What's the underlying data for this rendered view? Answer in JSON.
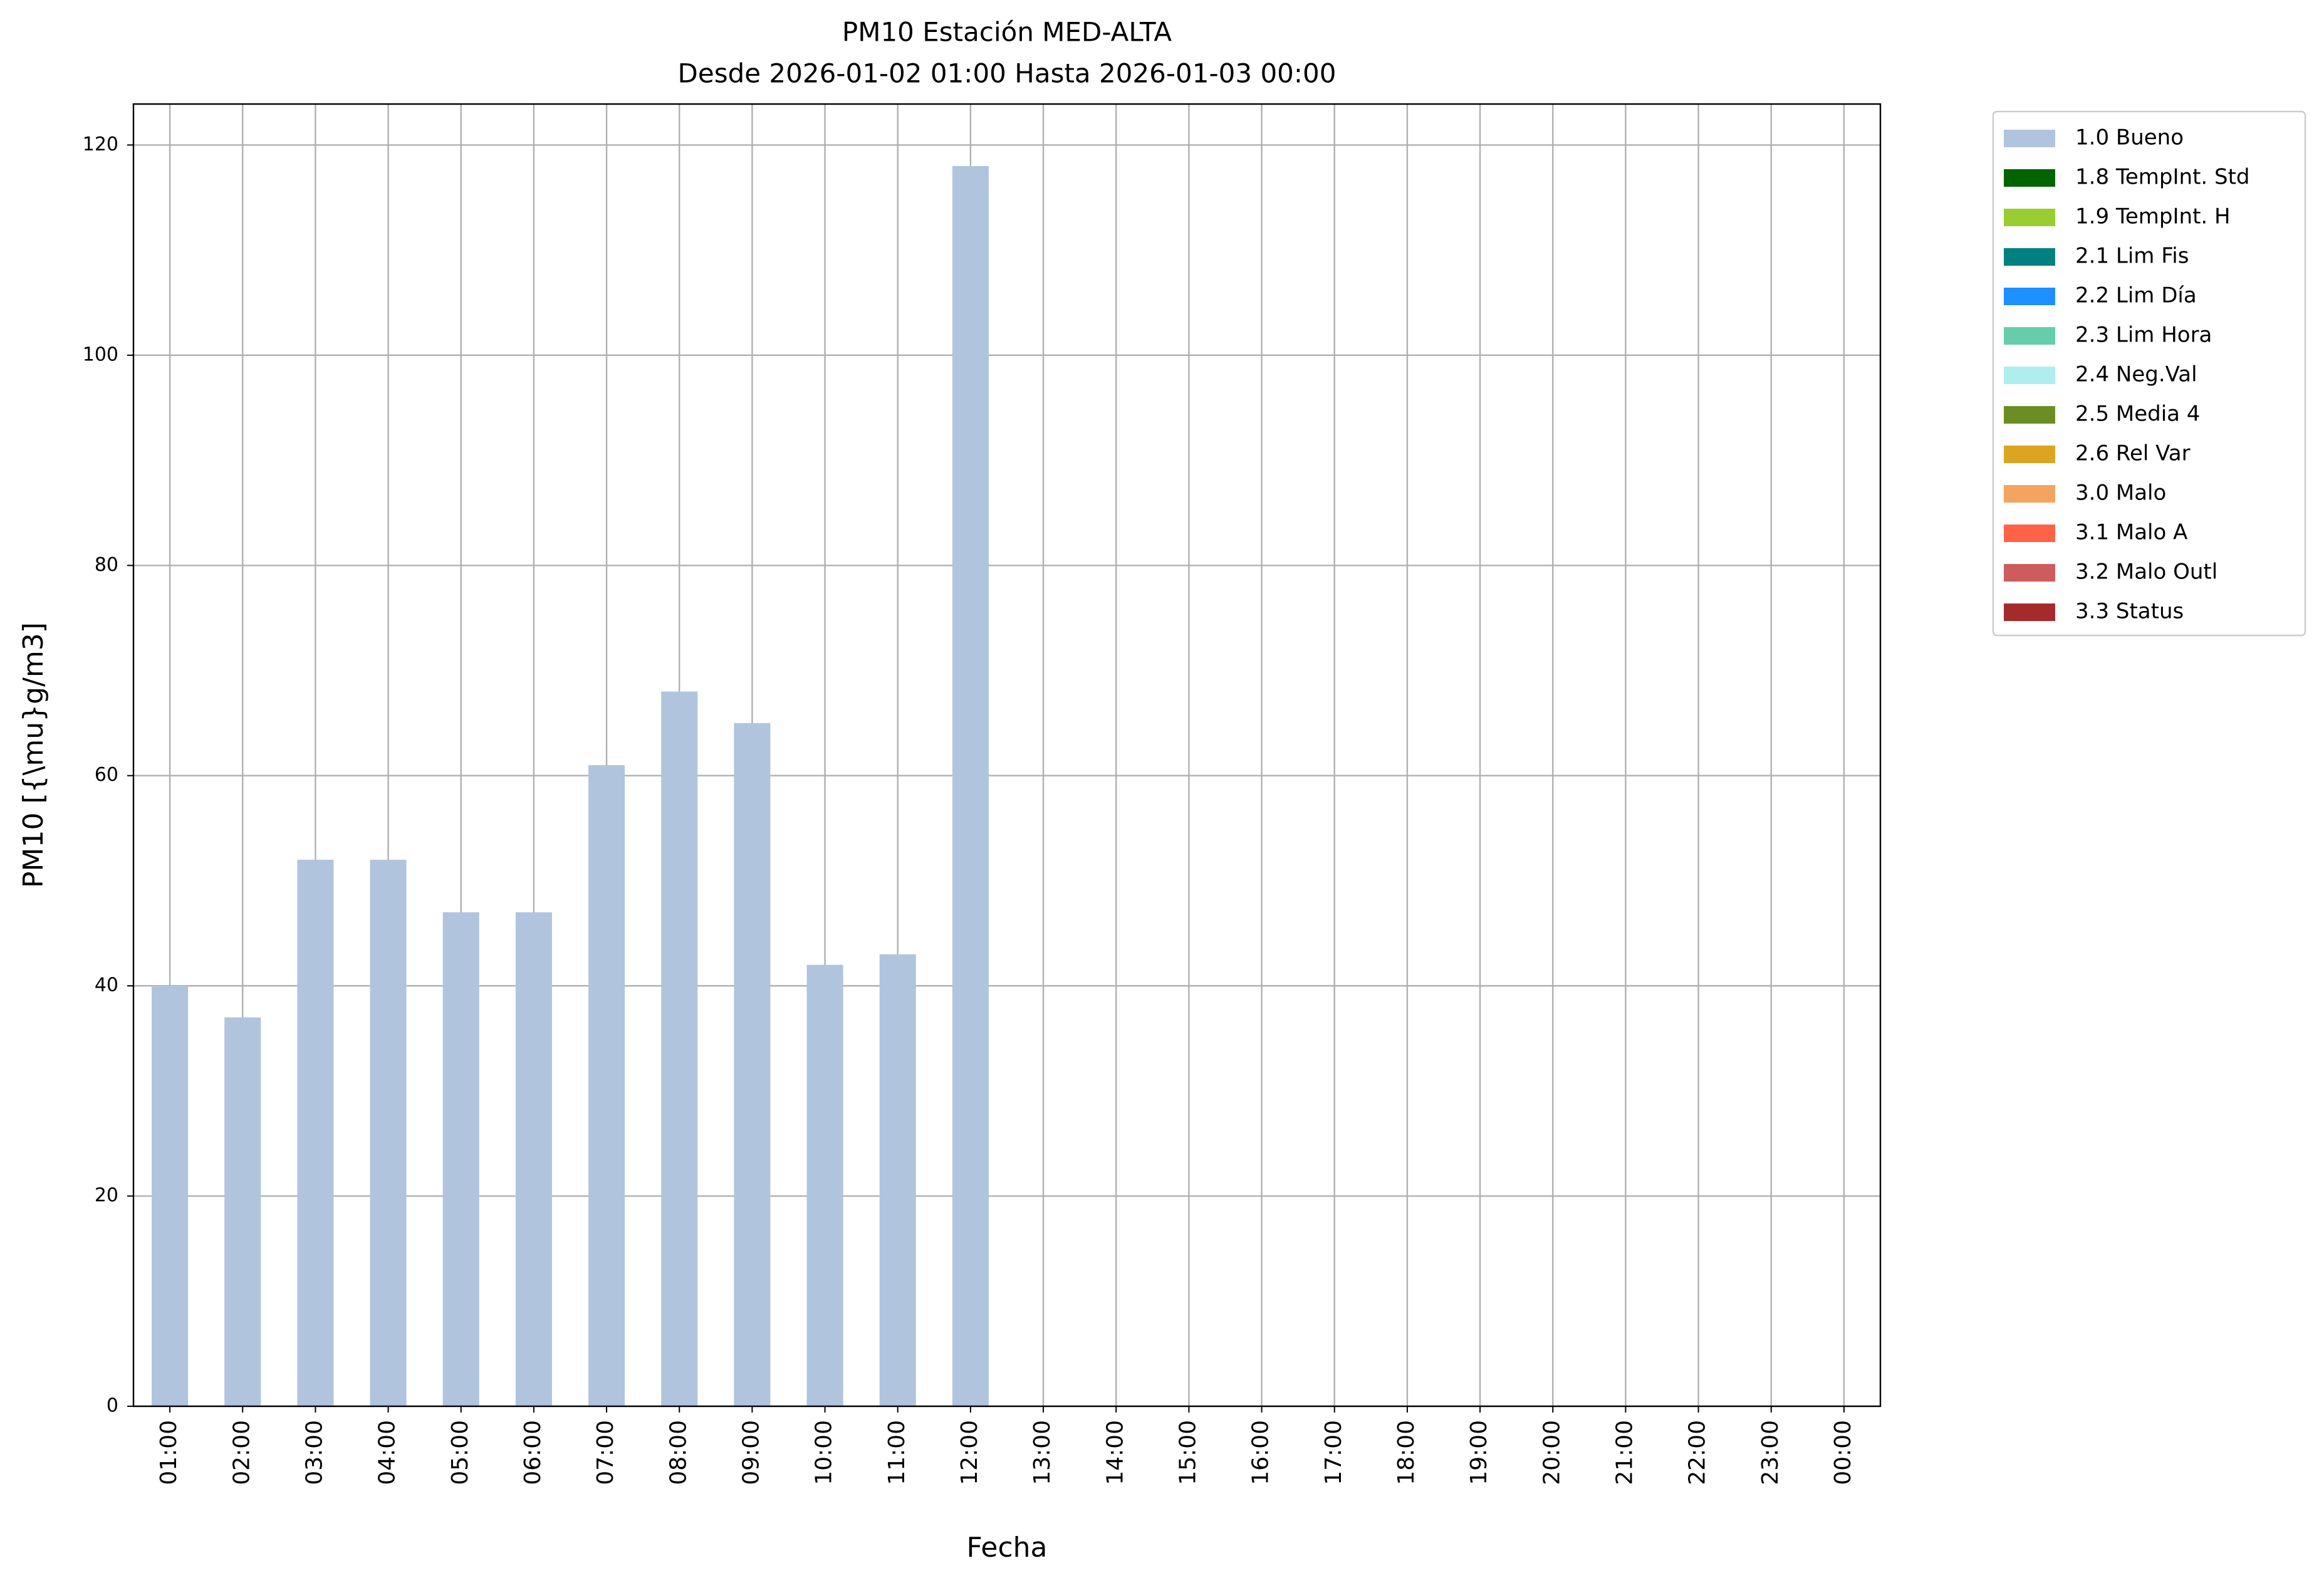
{
  "chart_data": {
    "type": "bar",
    "title": "PM10 Estación MED-ALTA",
    "subtitle": "Desde 2026-01-02 01:00 Hasta 2026-01-03 00:00",
    "x_label": "Fecha",
    "y_label": "PM10 [{\\mu}g/m3]",
    "categories": [
      "01:00",
      "02:00",
      "03:00",
      "04:00",
      "05:00",
      "06:00",
      "07:00",
      "08:00",
      "09:00",
      "10:00",
      "11:00",
      "12:00",
      "13:00",
      "14:00",
      "15:00",
      "16:00",
      "17:00",
      "18:00",
      "19:00",
      "20:00",
      "21:00",
      "22:00",
      "23:00",
      "00:00"
    ],
    "series": [
      {
        "name": "1.0 Bueno",
        "color": "#b0c4de",
        "values": [
          40,
          37,
          52,
          52,
          47,
          47,
          61,
          68,
          65,
          42,
          43,
          118,
          null,
          null,
          null,
          null,
          null,
          null,
          null,
          null,
          null,
          null,
          null,
          null
        ]
      },
      {
        "name": "1.8 TempInt. Std",
        "color": "#006400",
        "values": [
          null,
          null,
          null,
          null,
          null,
          null,
          null,
          null,
          null,
          null,
          null,
          null,
          null,
          null,
          null,
          null,
          null,
          null,
          null,
          null,
          null,
          null,
          null,
          null
        ]
      },
      {
        "name": "1.9 TempInt. H",
        "color": "#9acd32",
        "values": [
          null,
          null,
          null,
          null,
          null,
          null,
          null,
          null,
          null,
          null,
          null,
          null,
          null,
          null,
          null,
          null,
          null,
          null,
          null,
          null,
          null,
          null,
          null,
          null
        ]
      },
      {
        "name": "2.1 Lim Fis",
        "color": "#008080",
        "values": [
          null,
          null,
          null,
          null,
          null,
          null,
          null,
          null,
          null,
          null,
          null,
          null,
          null,
          null,
          null,
          null,
          null,
          null,
          null,
          null,
          null,
          null,
          null,
          null
        ]
      },
      {
        "name": "2.2 Lim Día",
        "color": "#1e90ff",
        "values": [
          null,
          null,
          null,
          null,
          null,
          null,
          null,
          null,
          null,
          null,
          null,
          null,
          null,
          null,
          null,
          null,
          null,
          null,
          null,
          null,
          null,
          null,
          null,
          null
        ]
      },
      {
        "name": "2.3 Lim Hora",
        "color": "#66cdaa",
        "values": [
          null,
          null,
          null,
          null,
          null,
          null,
          null,
          null,
          null,
          null,
          null,
          null,
          null,
          null,
          null,
          null,
          null,
          null,
          null,
          null,
          null,
          null,
          null,
          null
        ]
      },
      {
        "name": "2.4 Neg.Val",
        "color": "#afeeee",
        "values": [
          null,
          null,
          null,
          null,
          null,
          null,
          null,
          null,
          null,
          null,
          null,
          null,
          null,
          null,
          null,
          null,
          null,
          null,
          null,
          null,
          null,
          null,
          null,
          null
        ]
      },
      {
        "name": "2.5 Media 4",
        "color": "#6b8e23",
        "values": [
          null,
          null,
          null,
          null,
          null,
          null,
          null,
          null,
          null,
          null,
          null,
          null,
          null,
          null,
          null,
          null,
          null,
          null,
          null,
          null,
          null,
          null,
          null,
          null
        ]
      },
      {
        "name": "2.6 Rel Var",
        "color": "#daa520",
        "values": [
          null,
          null,
          null,
          null,
          null,
          null,
          null,
          null,
          null,
          null,
          null,
          null,
          null,
          null,
          null,
          null,
          null,
          null,
          null,
          null,
          null,
          null,
          null,
          null
        ]
      },
      {
        "name": "3.0 Malo",
        "color": "#f4a460",
        "values": [
          null,
          null,
          null,
          null,
          null,
          null,
          null,
          null,
          null,
          null,
          null,
          null,
          null,
          null,
          null,
          null,
          null,
          null,
          null,
          null,
          null,
          null,
          null,
          null
        ]
      },
      {
        "name": "3.1 Malo A",
        "color": "#ff6347",
        "values": [
          null,
          null,
          null,
          null,
          null,
          null,
          null,
          null,
          null,
          null,
          null,
          null,
          null,
          null,
          null,
          null,
          null,
          null,
          null,
          null,
          null,
          null,
          null,
          null
        ]
      },
      {
        "name": "3.2 Malo Outl",
        "color": "#cd5c5c",
        "values": [
          null,
          null,
          null,
          null,
          null,
          null,
          null,
          null,
          null,
          null,
          null,
          null,
          null,
          null,
          null,
          null,
          null,
          null,
          null,
          null,
          null,
          null,
          null,
          null
        ]
      },
      {
        "name": "3.3 Status",
        "color": "#a52a2a",
        "values": [
          null,
          null,
          null,
          null,
          null,
          null,
          null,
          null,
          null,
          null,
          null,
          null,
          null,
          null,
          null,
          null,
          null,
          null,
          null,
          null,
          null,
          null,
          null,
          null
        ]
      }
    ],
    "ylim": [
      0,
      123.9
    ],
    "yticks": [
      0,
      20,
      40,
      60,
      80,
      100,
      120
    ],
    "grid": true,
    "legend": "outside-upper-right"
  }
}
